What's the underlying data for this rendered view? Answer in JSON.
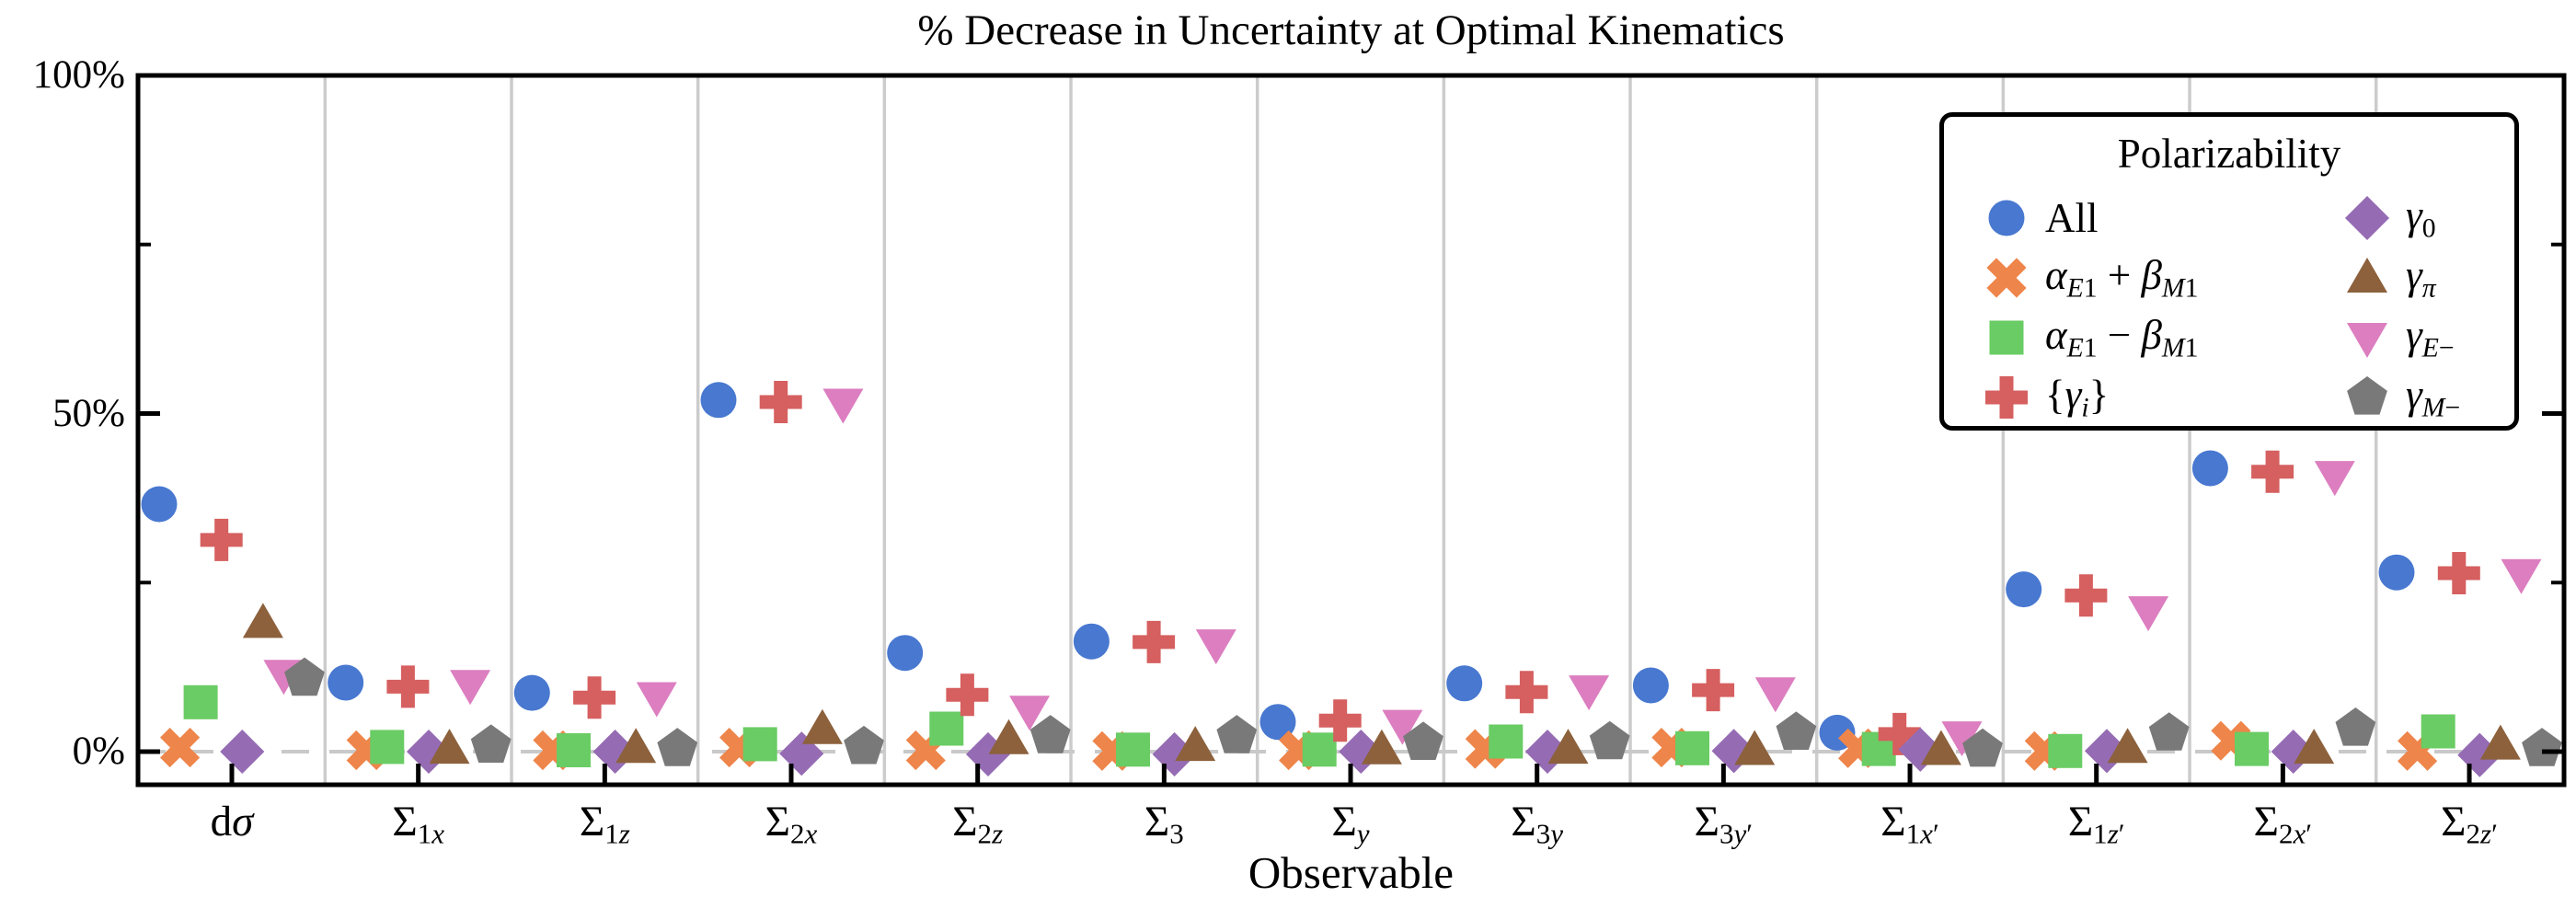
{
  "chart_data": {
    "type": "scatter",
    "title": "% Decrease in Uncertainty at Optimal Kinematics",
    "xlabel": "Observable",
    "ylabel": "",
    "legend_title": "Polarizability",
    "ylim": [
      0,
      100
    ],
    "y_ticks": [
      {
        "label": "0%",
        "value": 0
      },
      {
        "label": "50%",
        "value": 50
      },
      {
        "label": "100%",
        "value": 100
      }
    ],
    "y_minor_ticks": [
      25,
      75
    ],
    "grid": "vertical-between-categories",
    "zero_line": "dashed",
    "legend_position": "upper right",
    "colors": {
      "axis": "#000000",
      "grid": "#cccccc",
      "zero_line": "#c9c9c9",
      "background": "#ffffff"
    },
    "categories": [
      {
        "name": "dsigma",
        "label": "d*σ*"
      },
      {
        "name": "Sigma_1x",
        "label": "Σ~1*x*~"
      },
      {
        "name": "Sigma_1z",
        "label": "Σ~1*z*~"
      },
      {
        "name": "Sigma_2x",
        "label": "Σ~2*x*~"
      },
      {
        "name": "Sigma_2z",
        "label": "Σ~2*z*~"
      },
      {
        "name": "Sigma_3",
        "label": "Σ~3~"
      },
      {
        "name": "Sigma_y",
        "label": "Σ~*y*~"
      },
      {
        "name": "Sigma_3y",
        "label": "Σ~3*y*~"
      },
      {
        "name": "Sigma_3yp",
        "label": "Σ~3*y*′~"
      },
      {
        "name": "Sigma_1xp",
        "label": "Σ~1*x*′~"
      },
      {
        "name": "Sigma_1zp",
        "label": "Σ~1*z*′~"
      },
      {
        "name": "Sigma_2xp",
        "label": "Σ~2*x*′~"
      },
      {
        "name": "Sigma_2zp",
        "label": "Σ~2*z*′~"
      }
    ],
    "series": [
      {
        "name": "all",
        "label": "All",
        "marker": "circle",
        "color": "#4878d0",
        "values": [
          36.6,
          10.2,
          8.7,
          52.0,
          14.6,
          16.3,
          4.4,
          10.1,
          9.8,
          2.8,
          24.0,
          41.9,
          26.5
        ]
      },
      {
        "name": "aE1_plus_bM1",
        "label": "*α*~*E*1~ + *β*~*M*1~",
        "marker": "x",
        "color": "#ee854a",
        "values": [
          0.6,
          0.2,
          0.2,
          0.6,
          0.2,
          0.1,
          0.2,
          0.4,
          0.6,
          0.5,
          0.1,
          1.6,
          0.1
        ]
      },
      {
        "name": "aE1_minus_bM1",
        "label": "*α*~*E*1~ − *β*~*M*1~",
        "marker": "square",
        "color": "#6acc64",
        "values": [
          7.3,
          0.7,
          0.2,
          1.1,
          3.4,
          0.3,
          0.3,
          1.5,
          0.5,
          0.4,
          0.1,
          0.4,
          3.0
        ]
      },
      {
        "name": "gamma_i_set",
        "label": "{*γ*~*i*~}",
        "marker": "plus",
        "color": "#d65f5f",
        "values": [
          31.3,
          9.6,
          8.0,
          51.7,
          8.4,
          16.2,
          4.6,
          8.8,
          9.1,
          2.6,
          23.1,
          41.4,
          26.4
        ]
      },
      {
        "name": "gamma_0",
        "label": "*γ*~0~",
        "marker": "diamond",
        "color": "#956cb4",
        "values": [
          0.0,
          0.0,
          0.0,
          -0.3,
          -0.4,
          -0.4,
          0.0,
          0.0,
          0.1,
          0.3,
          0.1,
          0.0,
          -0.5
        ]
      },
      {
        "name": "gamma_pi",
        "label": "*γ*~*π*~",
        "marker": "triangle-up",
        "color": "#8c613c",
        "values": [
          19.0,
          0.4,
          0.5,
          3.3,
          1.8,
          0.8,
          0.3,
          0.4,
          0.2,
          0.2,
          0.5,
          0.4,
          1.0
        ]
      },
      {
        "name": "gamma_E_minus",
        "label": "*γ*~*E*−~",
        "marker": "triangle-down",
        "color": "#dc7ec0",
        "values": [
          11.4,
          9.9,
          8.1,
          51.5,
          6.1,
          15.9,
          4.0,
          9.1,
          8.8,
          2.3,
          20.8,
          40.8,
          26.3
        ]
      },
      {
        "name": "gamma_M_minus",
        "label": "*γ*~*M*−~",
        "marker": "pentagon",
        "color": "#797979",
        "values": [
          10.8,
          0.9,
          0.4,
          0.7,
          2.3,
          2.3,
          1.3,
          1.4,
          2.8,
          0.3,
          2.7,
          3.4,
          0.4
        ]
      }
    ],
    "legend_columns": [
      [
        0,
        1,
        2,
        3
      ],
      [
        4,
        5,
        6,
        7
      ]
    ]
  }
}
